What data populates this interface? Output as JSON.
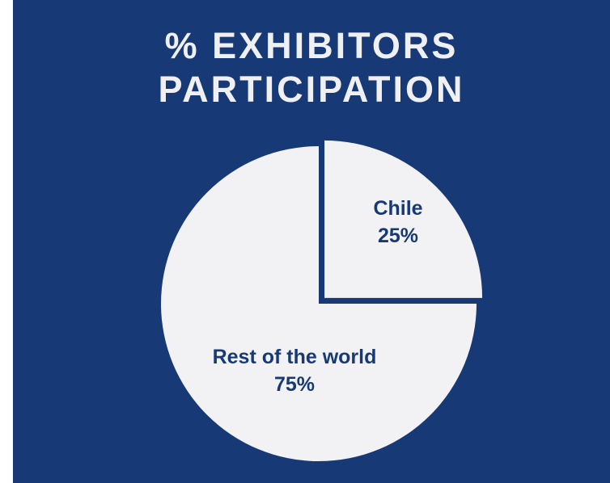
{
  "chart_data": {
    "type": "pie",
    "title_lines": [
      "% EXHIBITORS",
      "PARTICIPATION"
    ],
    "slices": [
      {
        "name": "Chile",
        "value": 25,
        "label": "25%",
        "exploded": true
      },
      {
        "name": "Rest of the world",
        "value": 75,
        "label": "75%",
        "exploded": false
      }
    ],
    "colors": {
      "background": "#173a76",
      "slice_fill": "#f2f2f4",
      "label_text": "#173a76",
      "title_text": "#f0f0f2"
    }
  }
}
